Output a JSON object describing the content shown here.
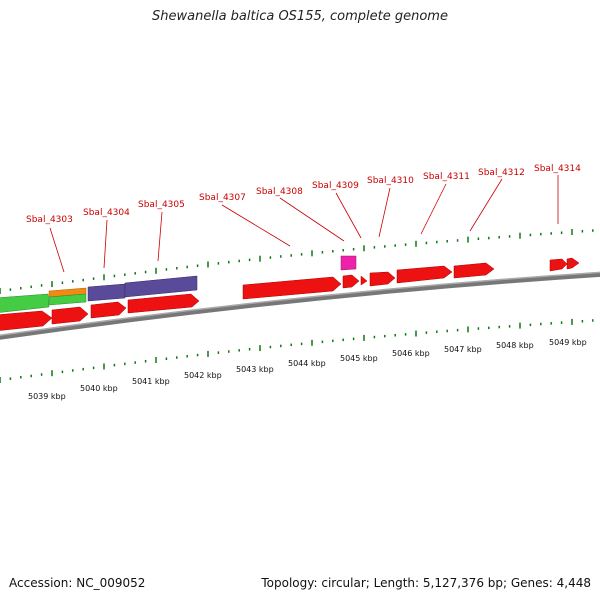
{
  "title": "Shewanella baltica OS155, complete genome",
  "footer": {
    "accession": "Accession: NC_009052",
    "summary": "Topology: circular; Length: 5,127,376 bp; Genes: 4,448"
  },
  "colors": {
    "gene_red": "#ee1111",
    "label_red": "#cc0000",
    "tick_green": "#117711",
    "backbone": "#888888",
    "purple": "#5a4a9a",
    "orange": "#f08a10",
    "green": "#44cc44",
    "magenta": "#ee22aa"
  },
  "gene_labels": [
    "Sbal_4303",
    "Sbal_4304",
    "Sbal_4305",
    "Sbal_4307",
    "Sbal_4308",
    "Sbal_4309",
    "Sbal_4310",
    "Sbal_4311",
    "Sbal_4312",
    "Sbal_4314"
  ],
  "kbp_labels": [
    "5039 kbp",
    "5040 kbp",
    "5041 kbp",
    "5042 kbp",
    "5043 kbp",
    "5044 kbp",
    "5045 kbp",
    "5046 kbp",
    "5047 kbp",
    "5048 kbp",
    "5049 kbp"
  ]
}
